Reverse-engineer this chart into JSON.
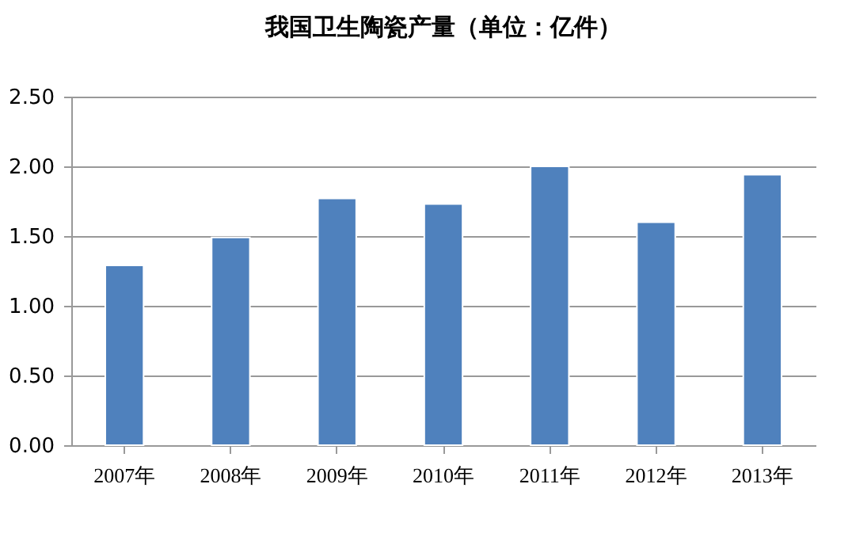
{
  "chart_data": {
    "type": "bar",
    "title": "我国卫生陶瓷产量（单位：亿件）",
    "categories": [
      "2007年",
      "2008年",
      "2009年",
      "2010年",
      "2011年",
      "2012年",
      "2013年"
    ],
    "values": [
      1.29,
      1.49,
      1.77,
      1.73,
      2.0,
      1.6,
      1.94
    ],
    "color": "#4f81bd",
    "ylim": [
      0,
      2.5
    ],
    "yticks": [
      {
        "value": 0,
        "label": "0.00"
      },
      {
        "value": 0.5,
        "label": "0.50"
      },
      {
        "value": 1,
        "label": "1.00"
      },
      {
        "value": 1.5,
        "label": "1.50"
      },
      {
        "value": 2,
        "label": "2.00"
      },
      {
        "value": 2.5,
        "label": "2.50"
      }
    ],
    "grid": "y"
  }
}
